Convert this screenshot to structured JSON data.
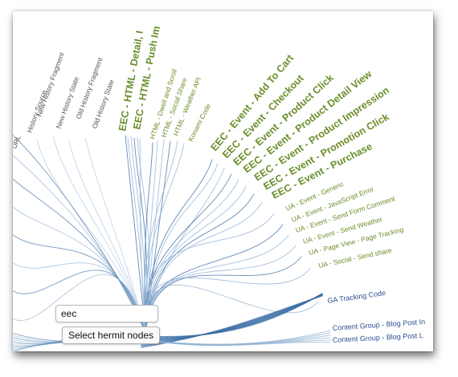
{
  "labels": {
    "left": [
      "History Source",
      "New History Fragment",
      "New History State",
      "Old History Fragment",
      "Old History State",
      "URL"
    ],
    "center_bold": [
      "EEC - HTML - Detail, I",
      "EEC - HTML - Push Im"
    ],
    "center_small": [
      "HTML - Dwell and Scroll",
      "HTML - Social Share",
      "HTML - Weather API",
      "Konami Code"
    ],
    "eec_events": [
      "EEC - Event - Add To Cart",
      "EEC - Event - Checkout",
      "EEC - Event - Product Click",
      "EEC - Event - Product Detail View",
      "EEC - Event - Product Impression",
      "EEC - Event - Promotion Click",
      "EEC - Event - Purchase"
    ],
    "ua_events": [
      "UA - Event - Generic",
      "UA - Event - JavaScript Error",
      "UA - Event - Send Form Comment",
      "UA - Event - Send Weather",
      "UA - Page View - Page Tracking",
      "UA - Social - Send share"
    ],
    "blue": [
      "GA Tracking Code",
      "Content Group - Blog Post In",
      "Content Group - Blog Post L"
    ]
  },
  "search": {
    "value": "eec"
  },
  "hermit_button": {
    "label": "Select hermit nodes"
  },
  "colors": {
    "edge": "#3b6ea5",
    "edge_light": "#8fb0d3",
    "green": "#6a8e2a",
    "grey": "#555555",
    "blue_label": "#2c4f8f"
  }
}
